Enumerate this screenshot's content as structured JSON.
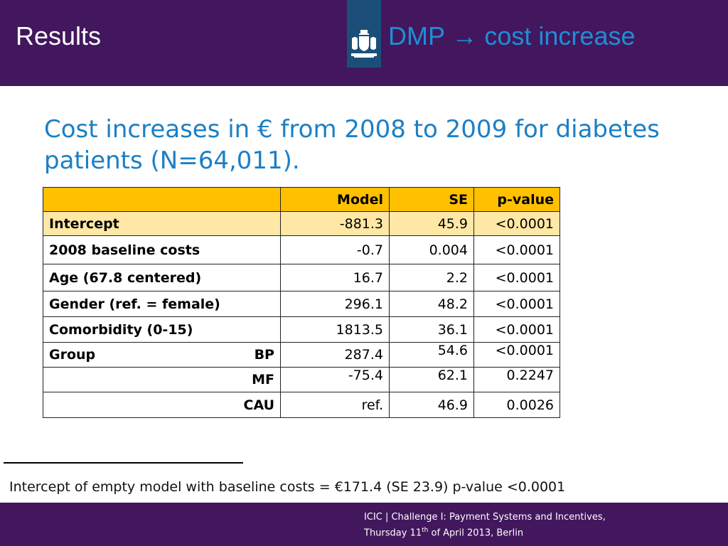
{
  "header": {
    "title": "Results",
    "subtitle_left": "DMP",
    "subtitle_arrow": "→",
    "subtitle_right": "cost increase"
  },
  "heading": "Cost increases in € from 2008 to 2009 for diabetes patients (N=64,011).",
  "table": {
    "columns": [
      "",
      "Model",
      "SE",
      "p-value"
    ],
    "rows": [
      {
        "label": "Intercept",
        "model": "-881.3",
        "se": "45.9",
        "p": "<0.0001"
      },
      {
        "label": "2008 baseline costs",
        "model": "-0.7",
        "se": "0.004",
        "p": "<0.0001"
      },
      {
        "label": "Age (67.8 centered)",
        "model": "16.7",
        "se": "2.2",
        "p": "<0.0001"
      },
      {
        "label": "Gender (ref. = female)",
        "model": "296.1",
        "se": "48.2",
        "p": "<0.0001"
      },
      {
        "label": "Comorbidity (0-15)",
        "model": "1813.5",
        "se": "36.1",
        "p": "<0.0001"
      },
      {
        "label": "Group",
        "sub": "BP",
        "model": "287.4",
        "se": "54.6",
        "p": "<0.0001"
      },
      {
        "label": "",
        "sub": "MF",
        "model": "-75.4",
        "se": "62.1",
        "p": "0.2247"
      },
      {
        "label": "",
        "sub": "CAU",
        "model": "ref.",
        "se": "46.9",
        "p": "0.0026"
      }
    ]
  },
  "footnote": "Intercept of empty model with baseline costs = €171.4 (SE 23.9) p-value <0.0001",
  "footer": {
    "line1": "ICIC | Challenge I: Payment Systems and Incentives,",
    "line2_pre": "Thursday 11",
    "line2_sup": "th",
    "line2_post": " of April 2013, Berlin"
  },
  "colors": {
    "header_bg": "#42175e",
    "accent_blue": "#1b7fc6",
    "table_header": "#ffc000",
    "table_highlight": "#ffe8a6"
  },
  "icons": {
    "logo": "coat-of-arms-icon"
  }
}
